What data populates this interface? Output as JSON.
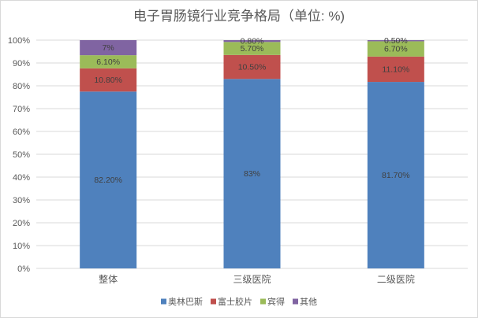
{
  "chart_data": {
    "type": "bar",
    "stacking": "percent",
    "title": "电子胃肠镜行业竞争格局（单位: %)",
    "categories": [
      "整体",
      "三级医院",
      "二级医院"
    ],
    "series": [
      {
        "name": "奥林巴斯",
        "color": "#4F81BD",
        "values": [
          82.2,
          83,
          81.7
        ],
        "labels": [
          "82.20%",
          "83%",
          "81.70%"
        ]
      },
      {
        "name": "富士胶片",
        "color": "#C0504D",
        "values": [
          10.8,
          10.5,
          11.1
        ],
        "labels": [
          "10.80%",
          "10.50%",
          "11.10%"
        ]
      },
      {
        "name": "宾得",
        "color": "#9BBB59",
        "values": [
          6.1,
          5.7,
          6.7
        ],
        "labels": [
          "6.10%",
          "5.70%",
          "6.70%"
        ]
      },
      {
        "name": "其他",
        "color": "#8064A2",
        "values": [
          7,
          0.8,
          0.5
        ],
        "labels": [
          "7%",
          "0.80%",
          "0.50%"
        ]
      }
    ],
    "y_axis": {
      "range": [
        0,
        100
      ],
      "ticks": [
        "0%",
        "10%",
        "20%",
        "30%",
        "40%",
        "50%",
        "60%",
        "70%",
        "80%",
        "90%",
        "100%"
      ]
    },
    "grid": true,
    "legend": "bottom"
  }
}
